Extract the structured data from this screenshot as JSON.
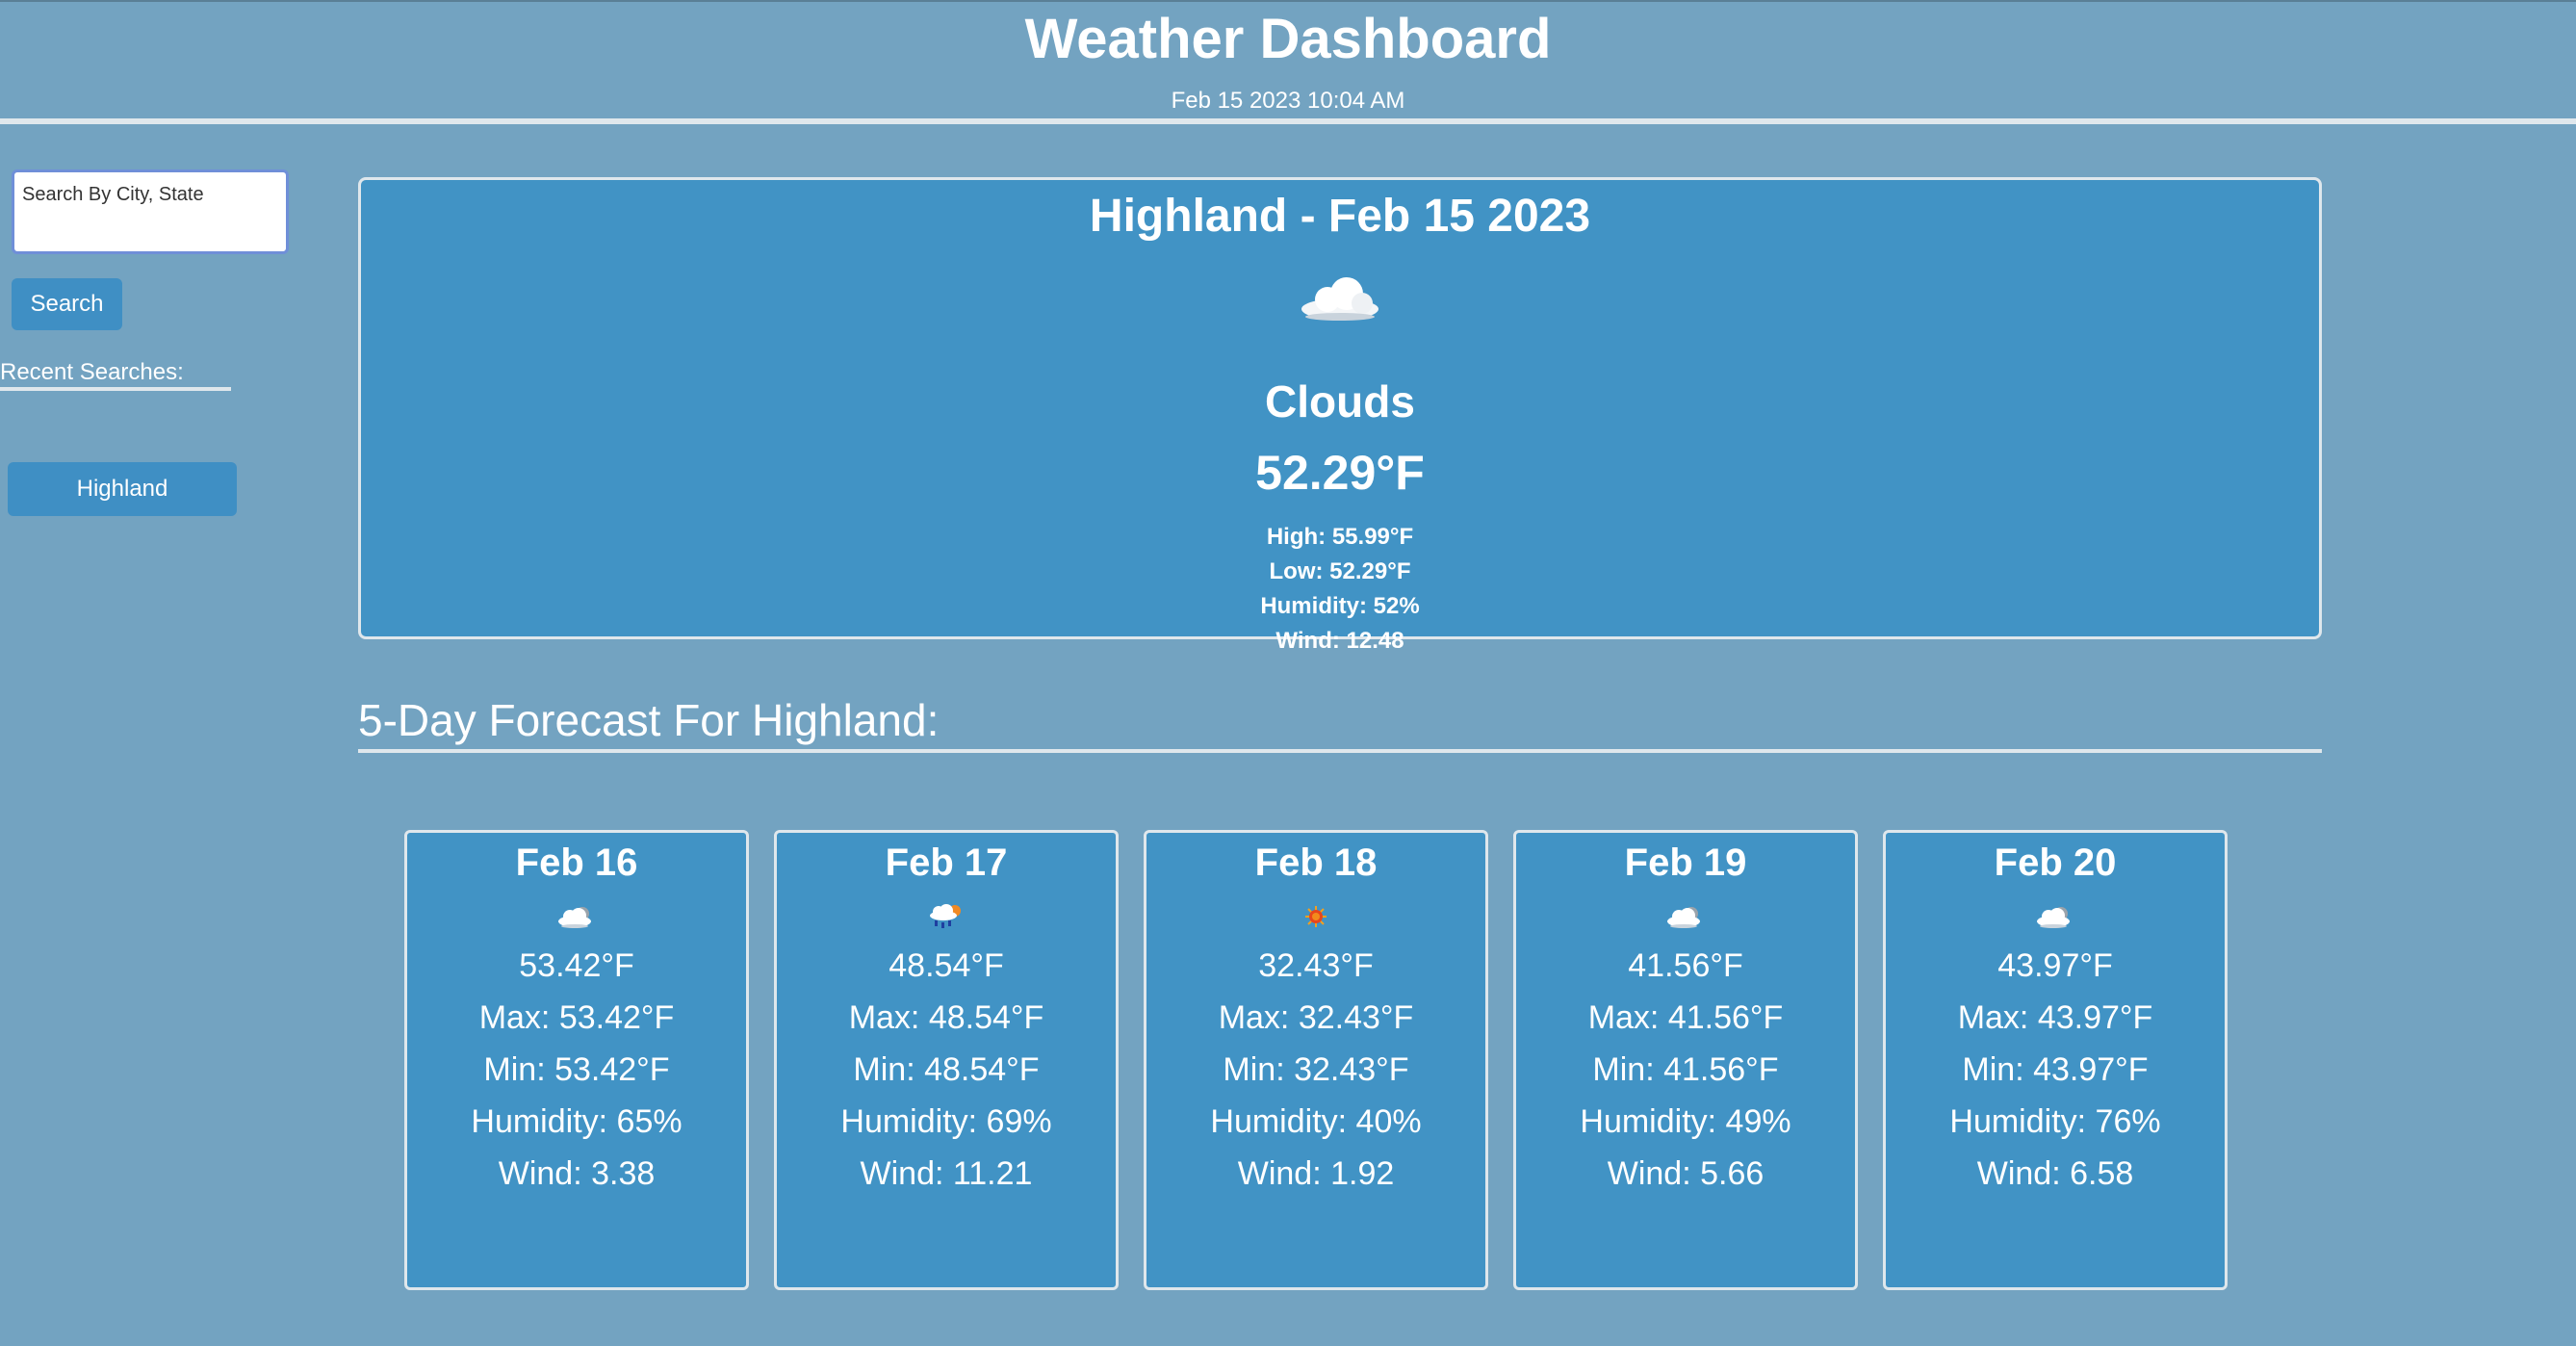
{
  "header": {
    "title": "Weather Dashboard",
    "datetime": "Feb 15 2023 10:04 AM"
  },
  "sidebar": {
    "search_placeholder": "Search By City, State",
    "search_button": "Search",
    "recent_label": "Recent Searches:",
    "recent_items": [
      "Highland"
    ]
  },
  "current": {
    "title": "Highland - Feb 15 2023",
    "icon": "cloud-icon",
    "description": "Clouds",
    "temp": "52.29°F",
    "high": "High: 55.99°F",
    "low": "Low: 52.29°F",
    "humidity": "Humidity: 52%",
    "wind": "Wind: 12.48"
  },
  "forecast": {
    "heading": "5-Day Forecast For Highland:",
    "days": [
      {
        "date": "Feb 16",
        "icon": "partly-cloudy-icon",
        "temp": "53.42°F",
        "max": "Max: 53.42°F",
        "min": "Min: 53.42°F",
        "humidity": "Humidity: 65%",
        "wind": "Wind: 3.38"
      },
      {
        "date": "Feb 17",
        "icon": "rain-icon",
        "temp": "48.54°F",
        "max": "Max: 48.54°F",
        "min": "Min: 48.54°F",
        "humidity": "Humidity: 69%",
        "wind": "Wind: 11.21"
      },
      {
        "date": "Feb 18",
        "icon": "sun-icon",
        "temp": "32.43°F",
        "max": "Max: 32.43°F",
        "min": "Min: 32.43°F",
        "humidity": "Humidity: 40%",
        "wind": "Wind: 1.92"
      },
      {
        "date": "Feb 19",
        "icon": "partly-cloudy-icon",
        "temp": "41.56°F",
        "max": "Max: 41.56°F",
        "min": "Min: 41.56°F",
        "humidity": "Humidity: 49%",
        "wind": "Wind: 5.66"
      },
      {
        "date": "Feb 20",
        "icon": "partly-cloudy-icon",
        "temp": "43.97°F",
        "max": "Max: 43.97°F",
        "min": "Min: 43.97°F",
        "humidity": "Humidity: 76%",
        "wind": "Wind: 6.58"
      }
    ]
  },
  "colors": {
    "page_background": "#73a3c1",
    "card_background": "#4193c5",
    "button_background": "#3f8fc4",
    "rule": "#dfe7ec"
  }
}
